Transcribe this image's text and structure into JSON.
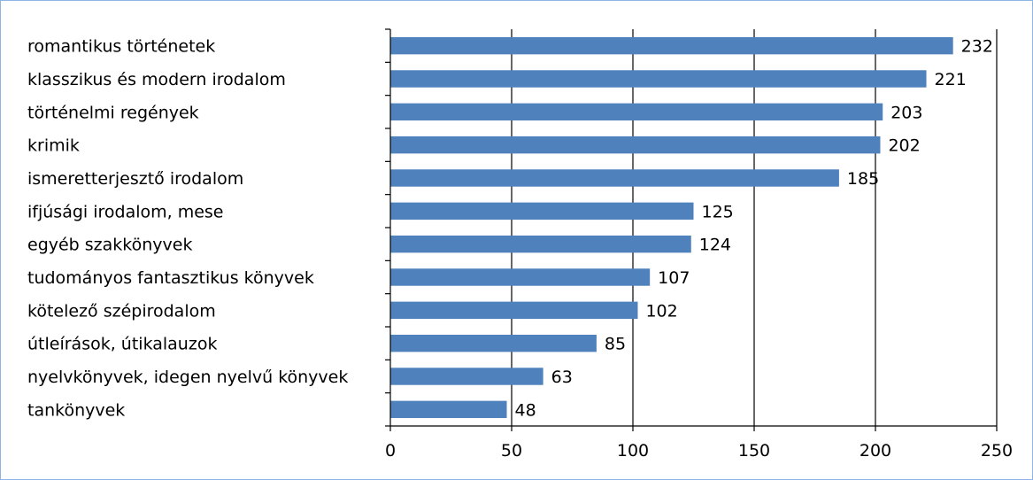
{
  "chart_data": {
    "type": "bar",
    "orientation": "horizontal",
    "categories": [
      "romantikus történetek",
      "klasszikus és modern irodalom",
      "történelmi regények",
      "krimik",
      "ismeretterjesztő irodalom",
      "ifjúsági irodalom, mese",
      "egyéb szakkönyvek",
      "tudományos fantasztikus könyvek",
      "kötelező szépirodalom",
      "útleírások, útikalauzok",
      "nyelvkönyvek, idegen nyelvű könyvek",
      "tankönyvek"
    ],
    "values": [
      232,
      221,
      203,
      202,
      185,
      125,
      124,
      107,
      102,
      85,
      63,
      48
    ],
    "xlim": [
      0,
      250
    ],
    "x_ticks": [
      "0",
      "50",
      "100",
      "150",
      "200",
      "250"
    ],
    "grid": true,
    "legend": "none",
    "title": "",
    "xlabel": "",
    "ylabel": "",
    "colors": {
      "bar": "#4f81bd",
      "grid": "#000000",
      "frame": "#8eb4e3"
    }
  }
}
